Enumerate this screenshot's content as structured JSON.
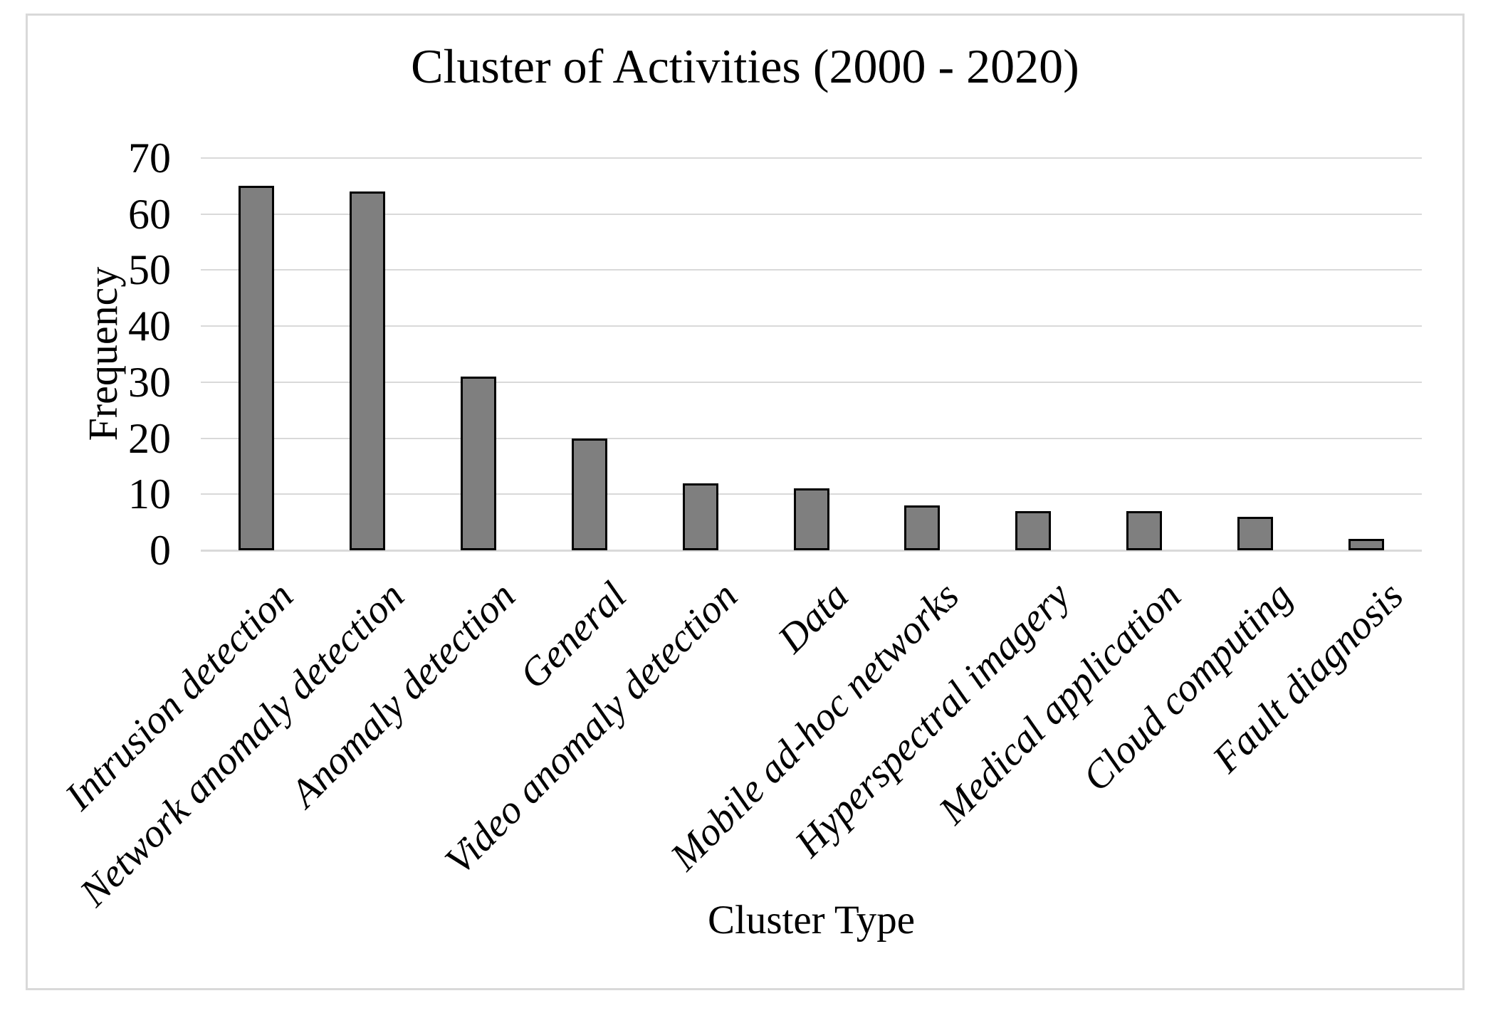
{
  "chart_data": {
    "type": "bar",
    "title": "Cluster of Activities (2000 - 2020)",
    "xlabel": "Cluster Type",
    "ylabel": "Frequency",
    "categories": [
      "Intrusion detection",
      "Network anomaly detection",
      "Anomaly detection",
      "General",
      "Video anomaly detection",
      "Data",
      "Mobile ad-hoc networks",
      "Hyperspectral imagery",
      "Medical application",
      "Cloud computing",
      "Fault diagnosis"
    ],
    "values": [
      65,
      64,
      31,
      20,
      12,
      11,
      8,
      7,
      7,
      6,
      2
    ],
    "ylim": [
      0,
      70
    ],
    "yticks": [
      0,
      10,
      20,
      30,
      40,
      50,
      60,
      70
    ],
    "grid": true,
    "legend_position": "none",
    "category_label_rotation_deg": 45,
    "colors": {
      "bar_fill": "#7f7f7f",
      "bar_border": "#000000",
      "gridline": "#d9d9d9",
      "frame_border": "#d9d9d9",
      "text": "#000000",
      "background": "#ffffff"
    }
  }
}
